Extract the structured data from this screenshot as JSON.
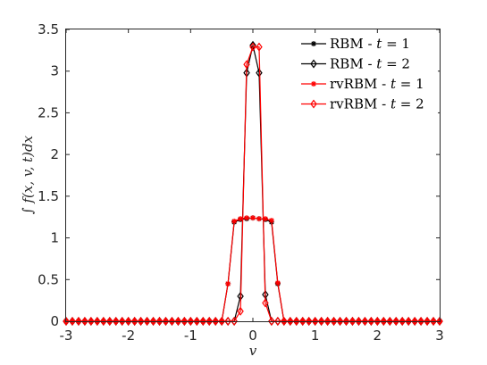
{
  "chart_data": {
    "type": "line",
    "xlabel": "v",
    "ylabel": "∫ f(x, v, t)dx",
    "xlim": [
      -3,
      3
    ],
    "ylim": [
      0,
      3.5
    ],
    "xticks": [
      "-3",
      "-2",
      "-1",
      "0",
      "1",
      "2",
      "3"
    ],
    "yticks": [
      "0",
      "0.5",
      "1",
      "1.5",
      "2",
      "2.5",
      "3",
      "3.5"
    ],
    "grid": false,
    "legend_position": "top-right",
    "x": [
      -3.0,
      -2.9,
      -2.8,
      -2.7,
      -2.6,
      -2.5,
      -2.4,
      -2.3,
      -2.2,
      -2.1,
      -2.0,
      -1.9,
      -1.8,
      -1.7,
      -1.6,
      -1.5,
      -1.4,
      -1.3,
      -1.2,
      -1.1,
      -1.0,
      -0.9,
      -0.8,
      -0.7,
      -0.6,
      -0.5,
      -0.4,
      -0.3,
      -0.2,
      -0.1,
      0.0,
      0.1,
      0.2,
      0.3,
      0.4,
      0.5,
      0.6,
      0.7,
      0.8,
      0.9,
      1.0,
      1.1,
      1.2,
      1.3,
      1.4,
      1.5,
      1.6,
      1.7,
      1.8,
      1.9,
      2.0,
      2.1,
      2.2,
      2.3,
      2.4,
      2.5,
      2.6,
      2.7,
      2.8,
      2.9,
      3.0
    ],
    "series": [
      {
        "name_prefix": "RBM - ",
        "name_var": "t",
        "name_suffix": " = 1",
        "color": "#000000",
        "marker": "asterisk",
        "values": [
          0,
          0,
          0,
          0,
          0,
          0,
          0,
          0,
          0,
          0,
          0,
          0,
          0,
          0,
          0,
          0,
          0,
          0,
          0,
          0,
          0,
          0,
          0,
          0,
          0,
          0,
          0.45,
          1.19,
          1.22,
          1.23,
          1.24,
          1.23,
          1.22,
          1.19,
          0.45,
          0,
          0,
          0,
          0,
          0,
          0,
          0,
          0,
          0,
          0,
          0,
          0,
          0,
          0,
          0,
          0,
          0,
          0,
          0,
          0,
          0,
          0,
          0,
          0,
          0,
          0
        ]
      },
      {
        "name_prefix": "RBM - ",
        "name_var": "t",
        "name_suffix": " = 2",
        "color": "#000000",
        "marker": "diamond",
        "values": [
          0,
          0,
          0,
          0,
          0,
          0,
          0,
          0,
          0,
          0,
          0,
          0,
          0,
          0,
          0,
          0,
          0,
          0,
          0,
          0,
          0,
          0,
          0,
          0,
          0,
          0,
          0,
          0,
          0.3,
          2.98,
          3.31,
          2.98,
          0.32,
          0,
          0,
          0,
          0,
          0,
          0,
          0,
          0,
          0,
          0,
          0,
          0,
          0,
          0,
          0,
          0,
          0,
          0,
          0,
          0,
          0,
          0,
          0,
          0,
          0,
          0,
          0,
          0
        ]
      },
      {
        "name_prefix": "rvRBM - ",
        "name_var": "t",
        "name_suffix": " = 1",
        "color": "#ff0000",
        "marker": "asterisk",
        "values": [
          0,
          0,
          0,
          0,
          0,
          0,
          0,
          0,
          0,
          0,
          0,
          0,
          0,
          0,
          0,
          0,
          0,
          0,
          0,
          0,
          0,
          0,
          0,
          0,
          0,
          0,
          0.45,
          1.2,
          1.23,
          1.24,
          1.24,
          1.23,
          1.23,
          1.21,
          0.46,
          0,
          0,
          0,
          0,
          0,
          0,
          0,
          0,
          0,
          0,
          0,
          0,
          0,
          0,
          0,
          0,
          0,
          0,
          0,
          0,
          0,
          0,
          0,
          0,
          0,
          0
        ]
      },
      {
        "name_prefix": "rvRBM - ",
        "name_var": "t",
        "name_suffix": " = 2",
        "color": "#ff0000",
        "marker": "diamond",
        "values": [
          0,
          0,
          0,
          0,
          0,
          0,
          0,
          0,
          0,
          0,
          0,
          0,
          0,
          0,
          0,
          0,
          0,
          0,
          0,
          0,
          0,
          0,
          0,
          0,
          0,
          0,
          0,
          0,
          0.12,
          3.08,
          3.29,
          3.29,
          0.22,
          0,
          0,
          0,
          0,
          0,
          0,
          0,
          0,
          0,
          0,
          0,
          0,
          0,
          0,
          0,
          0,
          0,
          0,
          0,
          0,
          0,
          0,
          0,
          0,
          0,
          0,
          0,
          0
        ]
      }
    ]
  }
}
